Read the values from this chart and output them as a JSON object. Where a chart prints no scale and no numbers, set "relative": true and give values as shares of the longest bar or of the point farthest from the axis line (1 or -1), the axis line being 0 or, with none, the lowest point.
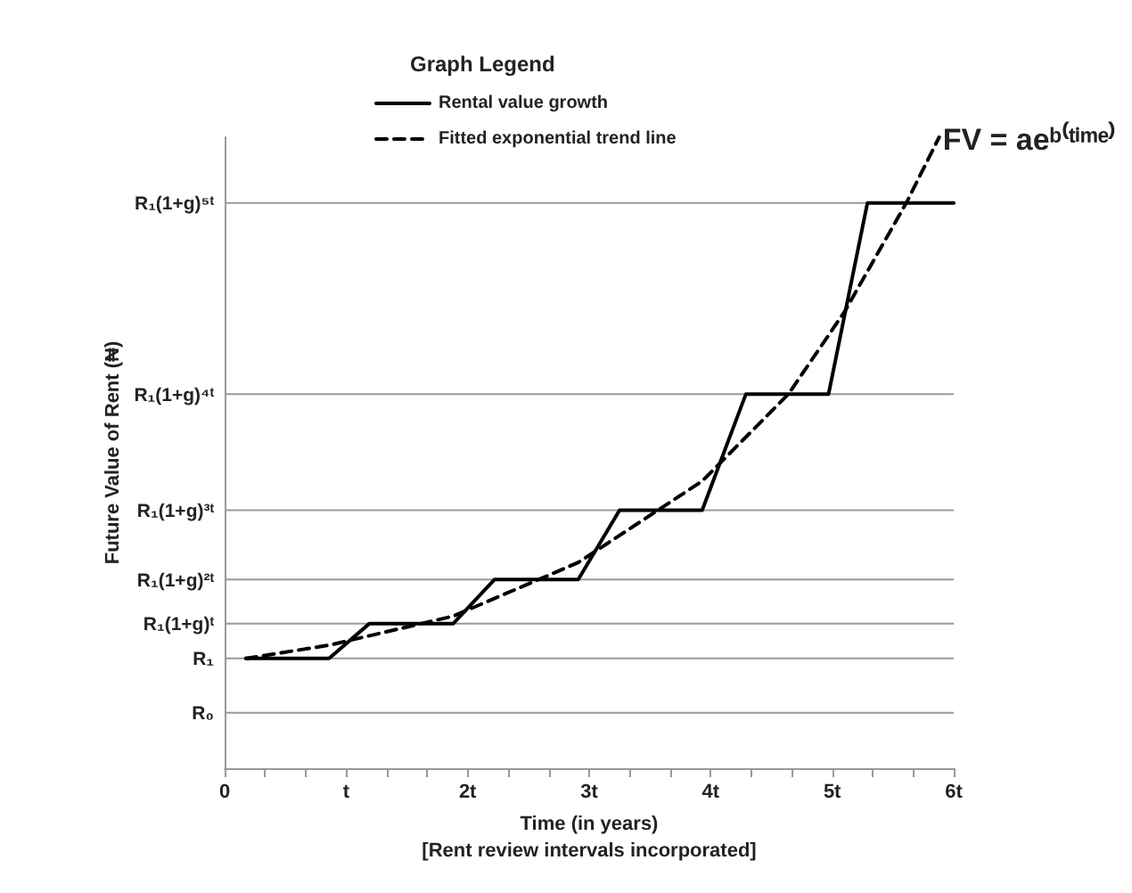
{
  "chart_data": {
    "type": "line",
    "relative": true,
    "xlabel": "Time (in years)\n[Rent review intervals incorporated]",
    "ylabel": "Future Value of Rent (₦)",
    "legend_title": "Graph Legend",
    "legend": "top left",
    "grid": false,
    "marker": "none",
    "xlim": [
      0,
      6
    ],
    "xticks": [
      0,
      {
        "value": 0.333,
        "label": null
      },
      {
        "value": 0.667,
        "label": null
      },
      {
        "value": 1,
        "label": "t"
      },
      {
        "value": 1.333,
        "label": null
      },
      {
        "value": 1.667,
        "label": null
      },
      {
        "value": 2,
        "label": "2t"
      },
      {
        "value": 2.333,
        "label": null
      },
      {
        "value": 2.667,
        "label": null
      },
      {
        "value": 3,
        "label": "3t"
      },
      {
        "value": 3.333,
        "label": null
      },
      {
        "value": 3.667,
        "label": null
      },
      {
        "value": 4,
        "label": "4t"
      },
      {
        "value": 4.333,
        "label": null
      },
      {
        "value": 4.667,
        "label": null
      },
      {
        "value": 5,
        "label": "5t"
      },
      {
        "value": 5.333,
        "label": null
      },
      {
        "value": 5.667,
        "label": null
      },
      {
        "value": 6,
        "label": "6t"
      }
    ],
    "series": [
      {
        "name": "Rental value growth",
        "color": "#000000",
        "line_style": "solid",
        "x": [
          0.175,
          0.86,
          1.19,
          1.88,
          2.22,
          2.91,
          3.25,
          3.93,
          4.29,
          4.97,
          5.29,
          6.0
        ],
        "values": [
          0.174,
          0.174,
          0.229,
          0.229,
          0.299,
          0.299,
          0.409,
          0.409,
          0.593,
          0.593,
          0.896,
          0.896
        ]
      },
      {
        "name": "Fitted exponential trend line",
        "color": "#000000",
        "line_style": "dashed",
        "x": [
          0.175,
          0.86,
          1.88,
          2.91,
          3.93,
          4.64,
          5.1,
          5.61,
          5.88
        ],
        "values": [
          0.174,
          0.195,
          0.241,
          0.326,
          0.455,
          0.593,
          0.723,
          0.896,
          1.0
        ]
      }
    ],
    "ref_lines": [
      {
        "axis": "y",
        "value": 0.088,
        "label": "R₀",
        "color": "#999999"
      },
      {
        "axis": "y",
        "value": 0.174,
        "label": "R₁",
        "color": "#999999"
      },
      {
        "axis": "y",
        "value": 0.229,
        "label": "R₁(1+g)ᵗ",
        "color": "#999999"
      },
      {
        "axis": "y",
        "value": 0.299,
        "label": "R₁(1+g)²ᵗ",
        "color": "#999999"
      },
      {
        "axis": "y",
        "value": 0.409,
        "label": "R₁(1+g)³ᵗ",
        "color": "#999999"
      },
      {
        "axis": "y",
        "value": 0.593,
        "label": "R₁(1+g)⁴ᵗ",
        "color": "#999999"
      },
      {
        "axis": "y",
        "value": 0.896,
        "label": "R₁(1+g)⁵ᵗ",
        "color": "#999999"
      }
    ],
    "annotations": [
      {
        "text": "FV = aeᵇ⁽ᵗⁱᵐᵉ⁾",
        "x": 5.88,
        "y": 1.0
      }
    ]
  }
}
